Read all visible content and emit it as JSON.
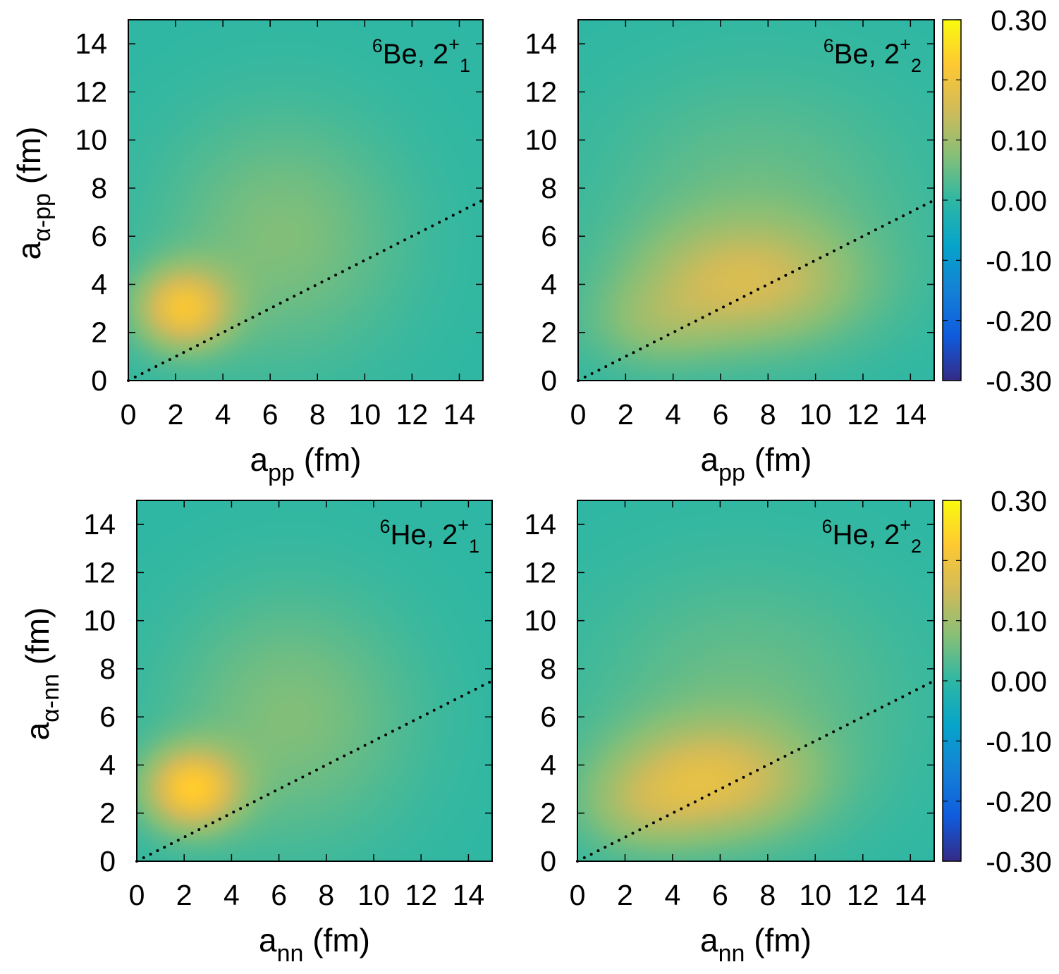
{
  "chart_data": [
    {
      "type": "heatmap",
      "panel": "top-left",
      "label": {
        "nucleus_mass": "6",
        "nucleus": "Be",
        "state": "2",
        "parity": "+",
        "index": "1"
      },
      "xlabel": {
        "main": "a",
        "sub": "pp",
        "unit": " (fm)"
      },
      "ylabel": {
        "main": "a",
        "sub": "α-pp",
        "unit": " (fm)"
      },
      "xlim": [
        0,
        15
      ],
      "ylim": [
        0,
        15
      ],
      "xticks": [
        0,
        2,
        4,
        6,
        8,
        10,
        12,
        14
      ],
      "yticks": [
        0,
        2,
        4,
        6,
        8,
        10,
        12,
        14
      ],
      "density_peaks": [
        {
          "x": 2.3,
          "y": 3.0,
          "amplitude": 0.19,
          "sx": 1.4,
          "sy": 1.2
        },
        {
          "x": 6.5,
          "y": 6.0,
          "amplitude": 0.07,
          "sx": 3.5,
          "sy": 3.5
        }
      ],
      "dotted_line": {
        "x": [
          0,
          15
        ],
        "y": [
          0,
          7.5
        ]
      },
      "zlim": [
        -0.3,
        0.3
      ]
    },
    {
      "type": "heatmap",
      "panel": "top-right",
      "label": {
        "nucleus_mass": "6",
        "nucleus": "Be",
        "state": "2",
        "parity": "+",
        "index": "2"
      },
      "xlabel": {
        "main": "a",
        "sub": "pp",
        "unit": " (fm)"
      },
      "ylabel": {
        "main": "",
        "sub": "",
        "unit": ""
      },
      "xlim": [
        0,
        15
      ],
      "ylim": [
        0,
        15
      ],
      "xticks": [
        0,
        2,
        4,
        6,
        8,
        10,
        12,
        14
      ],
      "yticks": [
        0,
        2,
        4,
        6,
        8,
        10,
        12,
        14
      ],
      "density_peaks": [
        {
          "x": 7.0,
          "y": 4.0,
          "amplitude": 0.13,
          "sx": 3.3,
          "sy": 1.8
        },
        {
          "x": 3.0,
          "y": 2.2,
          "amplitude": 0.05,
          "sx": 2.0,
          "sy": 1.3
        },
        {
          "x": 7.5,
          "y": 7.5,
          "amplitude": 0.05,
          "sx": 4.5,
          "sy": 3.5
        }
      ],
      "dotted_line": {
        "x": [
          0,
          15
        ],
        "y": [
          0,
          7.5
        ]
      },
      "zlim": [
        -0.3,
        0.3
      ]
    },
    {
      "type": "heatmap",
      "panel": "bottom-left",
      "label": {
        "nucleus_mass": "6",
        "nucleus": "He",
        "state": "2",
        "parity": "+",
        "index": "1"
      },
      "xlabel": {
        "main": "a",
        "sub": "nn",
        "unit": " (fm)"
      },
      "ylabel": {
        "main": "a",
        "sub": "α-nn",
        "unit": " (fm)"
      },
      "xlim": [
        0,
        15
      ],
      "ylim": [
        0,
        15
      ],
      "xticks": [
        0,
        2,
        4,
        6,
        8,
        10,
        12,
        14
      ],
      "yticks": [
        0,
        2,
        4,
        6,
        8,
        10,
        12,
        14
      ],
      "density_peaks": [
        {
          "x": 2.3,
          "y": 3.0,
          "amplitude": 0.21,
          "sx": 1.4,
          "sy": 1.2
        },
        {
          "x": 6.5,
          "y": 6.0,
          "amplitude": 0.07,
          "sx": 3.5,
          "sy": 3.5
        }
      ],
      "dotted_line": {
        "x": [
          0,
          15
        ],
        "y": [
          0,
          7.5
        ]
      },
      "zlim": [
        -0.3,
        0.3
      ]
    },
    {
      "type": "heatmap",
      "panel": "bottom-right",
      "label": {
        "nucleus_mass": "6",
        "nucleus": "He",
        "state": "2",
        "parity": "+",
        "index": "2"
      },
      "xlabel": {
        "main": "a",
        "sub": "nn",
        "unit": " (fm)"
      },
      "ylabel": {
        "main": "",
        "sub": "",
        "unit": ""
      },
      "xlim": [
        0,
        15
      ],
      "ylim": [
        0,
        15
      ],
      "xticks": [
        0,
        2,
        4,
        6,
        8,
        10,
        12,
        14
      ],
      "yticks": [
        0,
        2,
        4,
        6,
        8,
        10,
        12,
        14
      ],
      "density_peaks": [
        {
          "x": 5.5,
          "y": 3.3,
          "amplitude": 0.15,
          "sx": 3.0,
          "sy": 1.7
        },
        {
          "x": 2.5,
          "y": 2.0,
          "amplitude": 0.05,
          "sx": 1.8,
          "sy": 1.3
        },
        {
          "x": 7.0,
          "y": 7.0,
          "amplitude": 0.05,
          "sx": 4.5,
          "sy": 3.5
        }
      ],
      "dotted_line": {
        "x": [
          0,
          15
        ],
        "y": [
          0,
          7.5
        ]
      },
      "zlim": [
        -0.3,
        0.3
      ]
    }
  ],
  "colorbar": {
    "range": [
      -0.3,
      0.3
    ],
    "ticks": [
      0.3,
      0.2,
      0.1,
      0.0,
      -0.1,
      -0.2,
      -0.3
    ],
    "tick_labels": [
      "0.30",
      "0.20",
      "0.10",
      "0.00",
      "-0.10",
      "-0.20",
      "-0.30"
    ],
    "colormap": [
      "#352a87",
      "#0f5cdd",
      "#1481d6",
      "#06a4ca",
      "#2eb7a4",
      "#87bf77",
      "#d1bb59",
      "#fec832",
      "#f9fb0e"
    ]
  }
}
